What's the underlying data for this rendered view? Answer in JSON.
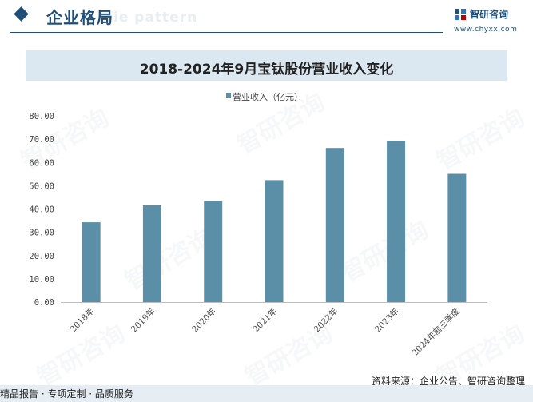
{
  "header": {
    "section_title": "企业格局",
    "section_subtitle": "ie pattern"
  },
  "logo": {
    "name": "智研咨询",
    "url": "www.chyxx.com"
  },
  "watermark_text": "智研咨询",
  "footer": {
    "tagline": "精品报告 · 专项定制 · 品质服务",
    "source": "资料来源：企业公告、智研咨询整理"
  },
  "colors": {
    "bar": "#5b8fa7",
    "brand": "#1f4e79",
    "title_band": "#dbe7f1"
  },
  "chart_data": {
    "type": "bar",
    "title": "2018-2024年9月宝钛股份营业收入变化",
    "categories": [
      "2018年",
      "2019年",
      "2020年",
      "2021年",
      "2022年",
      "2023年",
      "2024年前三季度"
    ],
    "series": [
      {
        "name": "营业收入（亿元）",
        "values": [
          34.3,
          41.6,
          43.4,
          52.4,
          66.2,
          69.3,
          55.1
        ]
      }
    ],
    "ylim": [
      0,
      80
    ],
    "yticks": [
      "0.00",
      "10.00",
      "20.00",
      "30.00",
      "40.00",
      "50.00",
      "60.00",
      "70.00",
      "80.00"
    ],
    "grid": false,
    "legend": "top-center"
  }
}
